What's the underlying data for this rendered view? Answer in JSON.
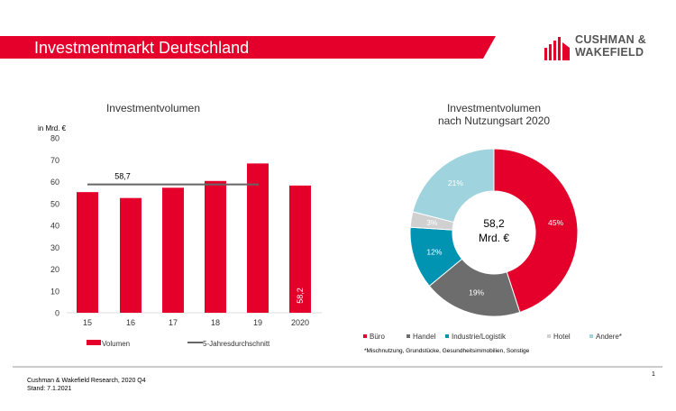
{
  "header": {
    "title": "Investmentmarkt Deutschland",
    "brand_color": "#e4002b"
  },
  "logo": {
    "line1": "CUSHMAN &",
    "line2": "WAKEFIELD"
  },
  "chart_data": [
    {
      "type": "bar",
      "title": "Investmentvolumen",
      "ylabel": "in Mrd. €",
      "ylim": [
        0,
        80
      ],
      "yticks": [
        "0",
        "10",
        "20",
        "30",
        "40",
        "50",
        "60",
        "70",
        "80"
      ],
      "categories": [
        "15",
        "16",
        "17",
        "18",
        "19",
        "2020"
      ],
      "series": [
        {
          "name": "Volumen",
          "values": [
            55.2,
            52.5,
            57.2,
            60.3,
            68.3,
            58.2
          ],
          "color": "#e4002b"
        },
        {
          "name": "5-Jahresdurchschnitt",
          "type": "line",
          "value": 58.7,
          "label": "58,7",
          "span": [
            "15",
            "19"
          ],
          "color": "#666666"
        }
      ],
      "data_labels": {
        "2020": "58,2"
      },
      "legend": "bottom",
      "grid": false
    },
    {
      "type": "pie",
      "donut": true,
      "title": "Investmentvolumen nach Nutzungsart 2020",
      "title_lines": [
        "Investmentvolumen",
        "nach Nutzungsart 2020"
      ],
      "center_label": [
        "58,2",
        "Mrd. €"
      ],
      "slices": [
        {
          "name": "Büro",
          "value": 45,
          "label": "45%",
          "color": "#e4002b"
        },
        {
          "name": "Handel",
          "value": 19,
          "label": "19%",
          "color": "#6d6d6d"
        },
        {
          "name": "Industrie/Logistik",
          "value": 12,
          "label": "12%",
          "color": "#0093b2"
        },
        {
          "name": "Hotel",
          "value": 3,
          "label": "3%",
          "color": "#d0d0d0"
        },
        {
          "name": "Andere*",
          "value": 21,
          "label": "21%",
          "color": "#9fd3de"
        }
      ],
      "footnote": "*Mischnutzung, Grundstücke, Gesundheitsimmobilien, Sonstige",
      "legend": "bottom"
    }
  ],
  "footer": {
    "source": "Cushman & Wakefield Research, 2020 Q4",
    "date": "Stand: 7.1.2021",
    "page": "1"
  }
}
